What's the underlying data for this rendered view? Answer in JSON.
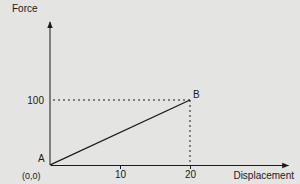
{
  "chart_data": {
    "type": "line",
    "x": [
      0,
      20
    ],
    "values": [
      0,
      100
    ],
    "xlim": [
      0,
      34
    ],
    "ylim": [
      0,
      220
    ],
    "xticks": [
      10,
      20
    ],
    "yticks": [
      100
    ],
    "x_label": "Displacement",
    "y_label": "Force",
    "annotations": [
      "A",
      "B",
      "(0,0)"
    ],
    "color": "#1a1a1a",
    "line_style": "solid",
    "grid": false
  }
}
